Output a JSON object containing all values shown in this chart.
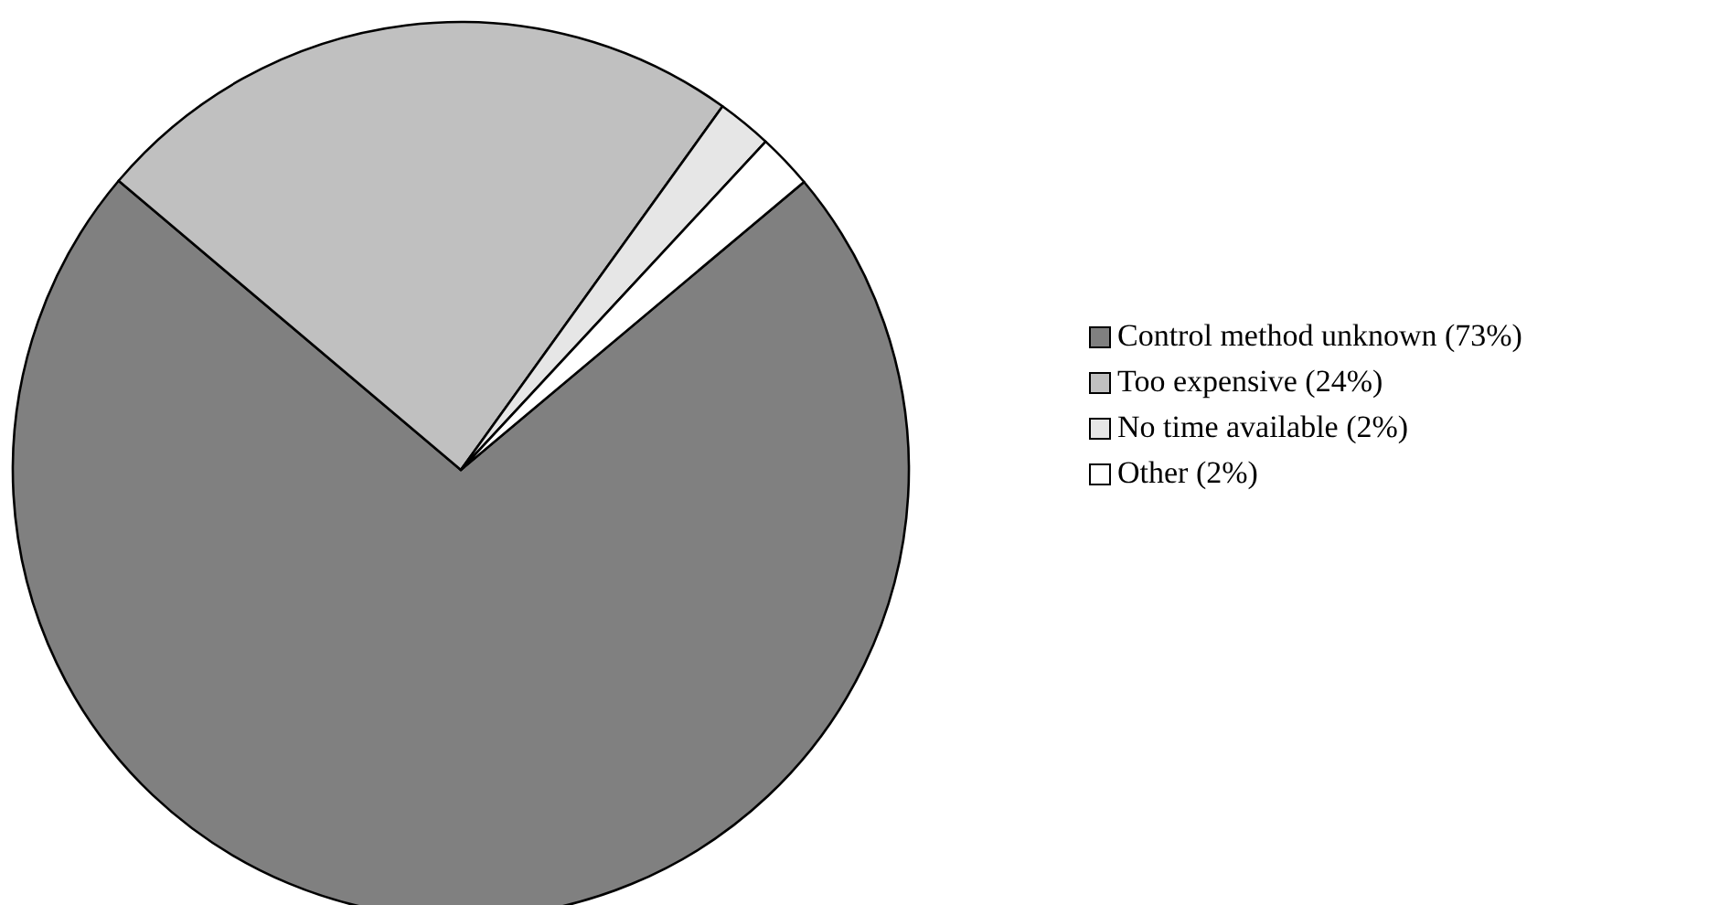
{
  "chart_data": {
    "type": "pie",
    "categories": [
      "Control method unknown (73%)",
      "Too expensive (24%)",
      "No time available (2%)",
      "Other (2%)"
    ],
    "values": [
      73,
      24,
      2,
      2
    ],
    "colors": [
      "#808080",
      "#c0c0c0",
      "#e6e6e6",
      "#ffffff"
    ],
    "legend": "right"
  }
}
